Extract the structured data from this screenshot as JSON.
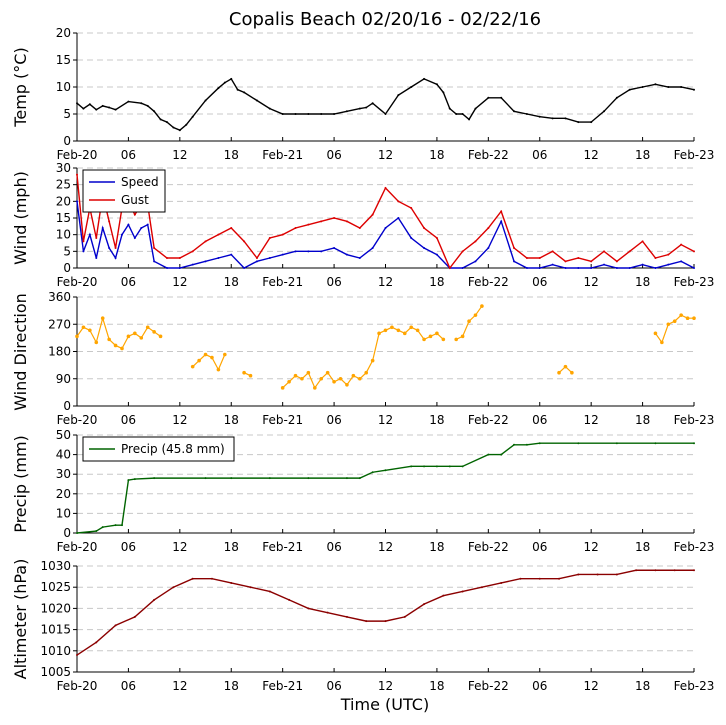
{
  "title": "Copalis Beach 02/20/16 - 02/22/16",
  "x_axis_label": "Time (UTC)",
  "x_tick_labels": [
    "Feb-20",
    "06",
    "12",
    "18",
    "Feb-21",
    "06",
    "12",
    "18",
    "Feb-22",
    "06",
    "12",
    "18",
    "Feb-23"
  ],
  "colors": {
    "temp": "#000000",
    "speed": "#0000cc",
    "gust": "#dd0000",
    "direction": "#ffa500",
    "precip": "#006400",
    "altimeter": "#8b0000"
  },
  "chart_data": [
    {
      "id": "temp",
      "type": "line",
      "ylabel": "Temp ($^\\circ$C)",
      "ylabel_text": "Temp (°C)",
      "ylim": [
        0,
        20
      ],
      "yticks": [
        "0",
        "5",
        "10",
        "15",
        "20"
      ],
      "grid": true,
      "x_hours": [
        0,
        1,
        2,
        3,
        4,
        5,
        6,
        8,
        10,
        11,
        12,
        13,
        14,
        15,
        16,
        17,
        18,
        20,
        22,
        23,
        24,
        25,
        26,
        28,
        30,
        32,
        34,
        36,
        38,
        40,
        42,
        44,
        45,
        46,
        48,
        50,
        52,
        54,
        56,
        57,
        58,
        59,
        60,
        61,
        62,
        64,
        66,
        68,
        70,
        72,
        74,
        76,
        78,
        80,
        82,
        84,
        86,
        88,
        90,
        92,
        94,
        96
      ],
      "series": [
        {
          "name": "Temp",
          "values": [
            7,
            6,
            6.8,
            5.8,
            6.5,
            6.2,
            5.8,
            7.3,
            7,
            6.5,
            5.5,
            4,
            3.5,
            2.5,
            2,
            3,
            4.5,
            7.5,
            9.8,
            10.8,
            11.5,
            9.5,
            9,
            7.5,
            6,
            5,
            5,
            5,
            5,
            5,
            5.5,
            6,
            6.2,
            7,
            5,
            8.5,
            10,
            11.5,
            10.5,
            9,
            6,
            5,
            5,
            4,
            6,
            8,
            8,
            5.5,
            5,
            4.5,
            4.2,
            4.2,
            3.5,
            3.5,
            5.5,
            8,
            9.5,
            10,
            10.5,
            10,
            10,
            9.5
          ]
        }
      ]
    },
    {
      "id": "wind",
      "type": "line",
      "ylabel": "Wind (mph)",
      "ylim": [
        0,
        30
      ],
      "yticks": [
        "0",
        "5",
        "10",
        "15",
        "20",
        "25",
        "30"
      ],
      "grid": true,
      "legend": {
        "location": "upper left"
      },
      "x_hours": [
        0,
        1,
        2,
        3,
        4,
        5,
        6,
        7,
        8,
        9,
        10,
        11,
        12,
        14,
        16,
        18,
        20,
        22,
        24,
        26,
        28,
        30,
        32,
        34,
        36,
        38,
        40,
        42,
        44,
        46,
        48,
        50,
        52,
        54,
        56,
        58,
        60,
        62,
        64,
        66,
        68,
        70,
        72,
        74,
        76,
        78,
        80,
        82,
        84,
        86,
        88,
        90,
        92,
        94,
        96
      ],
      "series": [
        {
          "name": "Speed",
          "values": [
            20,
            5,
            10,
            3,
            12,
            6,
            3,
            10,
            13,
            9,
            12,
            13,
            2,
            0,
            0,
            1,
            2,
            3,
            4,
            0,
            2,
            3,
            4,
            5,
            5,
            5,
            6,
            4,
            3,
            6,
            12,
            15,
            9,
            6,
            4,
            0,
            0,
            2,
            6,
            14,
            2,
            0,
            0,
            1,
            0,
            0,
            0,
            1,
            0,
            0,
            1,
            0,
            1,
            2,
            0
          ]
        },
        {
          "name": "Gust",
          "values": [
            28,
            8,
            18,
            9,
            22,
            14,
            6,
            18,
            20,
            16,
            19,
            19,
            6,
            3,
            3,
            5,
            8,
            10,
            12,
            8,
            3,
            9,
            10,
            12,
            13,
            14,
            15,
            14,
            12,
            16,
            24,
            20,
            18,
            12,
            9,
            0,
            5,
            8,
            12,
            17,
            6,
            3,
            3,
            5,
            2,
            3,
            2,
            5,
            2,
            5,
            8,
            3,
            4,
            7,
            5
          ]
        }
      ]
    },
    {
      "id": "direction",
      "type": "scatter",
      "ylabel": "Wind Direction",
      "ylim": [
        0,
        360
      ],
      "yticks": [
        "0",
        "90",
        "180",
        "270",
        "360"
      ],
      "grid": true,
      "x_hours": [
        0,
        1,
        2,
        3,
        4,
        5,
        6,
        7,
        8,
        9,
        10,
        11,
        12,
        13,
        18,
        19,
        20,
        21,
        22,
        23,
        26,
        27,
        32,
        33,
        34,
        35,
        36,
        37,
        38,
        39,
        40,
        41,
        42,
        43,
        44,
        45,
        46,
        47,
        48,
        49,
        50,
        51,
        52,
        53,
        54,
        55,
        56,
        57,
        59,
        60,
        61,
        62,
        63,
        75,
        76,
        77,
        90,
        91,
        92,
        93,
        94,
        95,
        96
      ],
      "series": [
        {
          "name": "Direction",
          "values": [
            230,
            260,
            250,
            210,
            290,
            220,
            200,
            190,
            230,
            240,
            225,
            260,
            245,
            230,
            130,
            150,
            170,
            160,
            120,
            170,
            110,
            100,
            60,
            80,
            100,
            90,
            110,
            60,
            90,
            110,
            80,
            90,
            70,
            100,
            90,
            110,
            150,
            240,
            250,
            260,
            250,
            240,
            260,
            250,
            220,
            230,
            240,
            220,
            220,
            230,
            280,
            300,
            330,
            110,
            130,
            110,
            240,
            210,
            270,
            280,
            300,
            290,
            290
          ]
        }
      ]
    },
    {
      "id": "precip",
      "type": "line",
      "ylabel": "Precip (mm)",
      "ylim": [
        0,
        50
      ],
      "yticks": [
        "0",
        "10",
        "20",
        "30",
        "40",
        "50"
      ],
      "grid": true,
      "legend": {
        "location": "upper left"
      },
      "x_hours": [
        0,
        3,
        4,
        6,
        7,
        8,
        9,
        12,
        20,
        24,
        30,
        36,
        42,
        44,
        46,
        48,
        52,
        54,
        56,
        58,
        60,
        64,
        66,
        68,
        70,
        72,
        78,
        84,
        90,
        96
      ],
      "series": [
        {
          "name": "Precip (45.8 mm)",
          "values": [
            0,
            1,
            3,
            4,
            4,
            27,
            27.5,
            28,
            28,
            28,
            28,
            28,
            28,
            28,
            31,
            32,
            34,
            34,
            34,
            34,
            34,
            40,
            40,
            45,
            45,
            45.8,
            45.8,
            45.8,
            45.8,
            45.8
          ]
        }
      ]
    },
    {
      "id": "altimeter",
      "type": "line",
      "ylabel": "Altimeter (hPa)",
      "ylim": [
        1005,
        1030
      ],
      "yticks": [
        "1005",
        "1010",
        "1015",
        "1020",
        "1025",
        "1030"
      ],
      "grid": true,
      "x_hours": [
        0,
        3,
        6,
        9,
        12,
        15,
        18,
        21,
        24,
        27,
        30,
        33,
        36,
        39,
        42,
        45,
        48,
        51,
        54,
        57,
        60,
        63,
        66,
        69,
        72,
        75,
        78,
        81,
        84,
        87,
        90,
        93,
        96
      ],
      "series": [
        {
          "name": "Altimeter",
          "values": [
            1009,
            1012,
            1016,
            1018,
            1022,
            1025,
            1027,
            1027,
            1026,
            1025,
            1024,
            1022,
            1020,
            1019,
            1018,
            1017,
            1017,
            1018,
            1021,
            1023,
            1024,
            1025,
            1026,
            1027,
            1027,
            1027,
            1028,
            1028,
            1028,
            1029,
            1029,
            1029,
            1029
          ]
        }
      ]
    }
  ]
}
